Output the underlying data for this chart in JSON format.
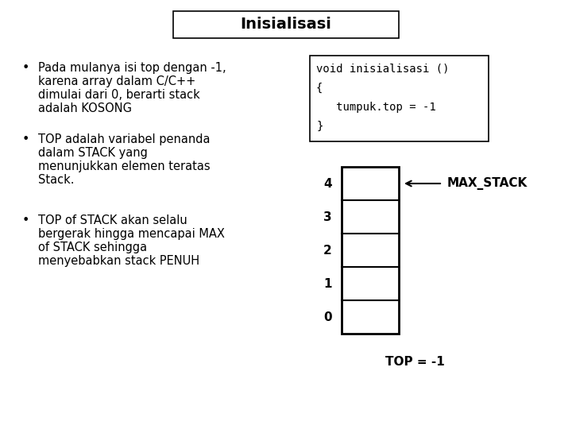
{
  "title": "Inisialisasi",
  "bullet1_lines": [
    "Pada mulanya isi top dengan -1,",
    "karena array dalam C/C++",
    "dimulai dari 0, berarti stack",
    "adalah KOSONG"
  ],
  "bullet2_lines": [
    "TOP adalah variabel penanda",
    "dalam STACK yang",
    "menunjukkan elemen teratas",
    "Stack."
  ],
  "bullet3_lines": [
    "TOP of STACK akan selalu",
    "bergerak hingga mencapai MAX",
    "of STACK sehingga",
    "menyebabkan stack PENUH"
  ],
  "code_lines": [
    "void inisialisasi ()",
    "{",
    "   tumpuk.top = -1",
    "}"
  ],
  "stack_labels": [
    "4",
    "3",
    "2",
    "1",
    "0"
  ],
  "max_stack_label": "MAX_STACK",
  "top_label": "TOP = -1",
  "bg_color": "#ffffff",
  "text_color": "#000000",
  "box_color": "#000000",
  "title_fontsize": 14,
  "body_fontsize": 10.5,
  "code_fontsize": 10,
  "stack_fontsize": 11
}
